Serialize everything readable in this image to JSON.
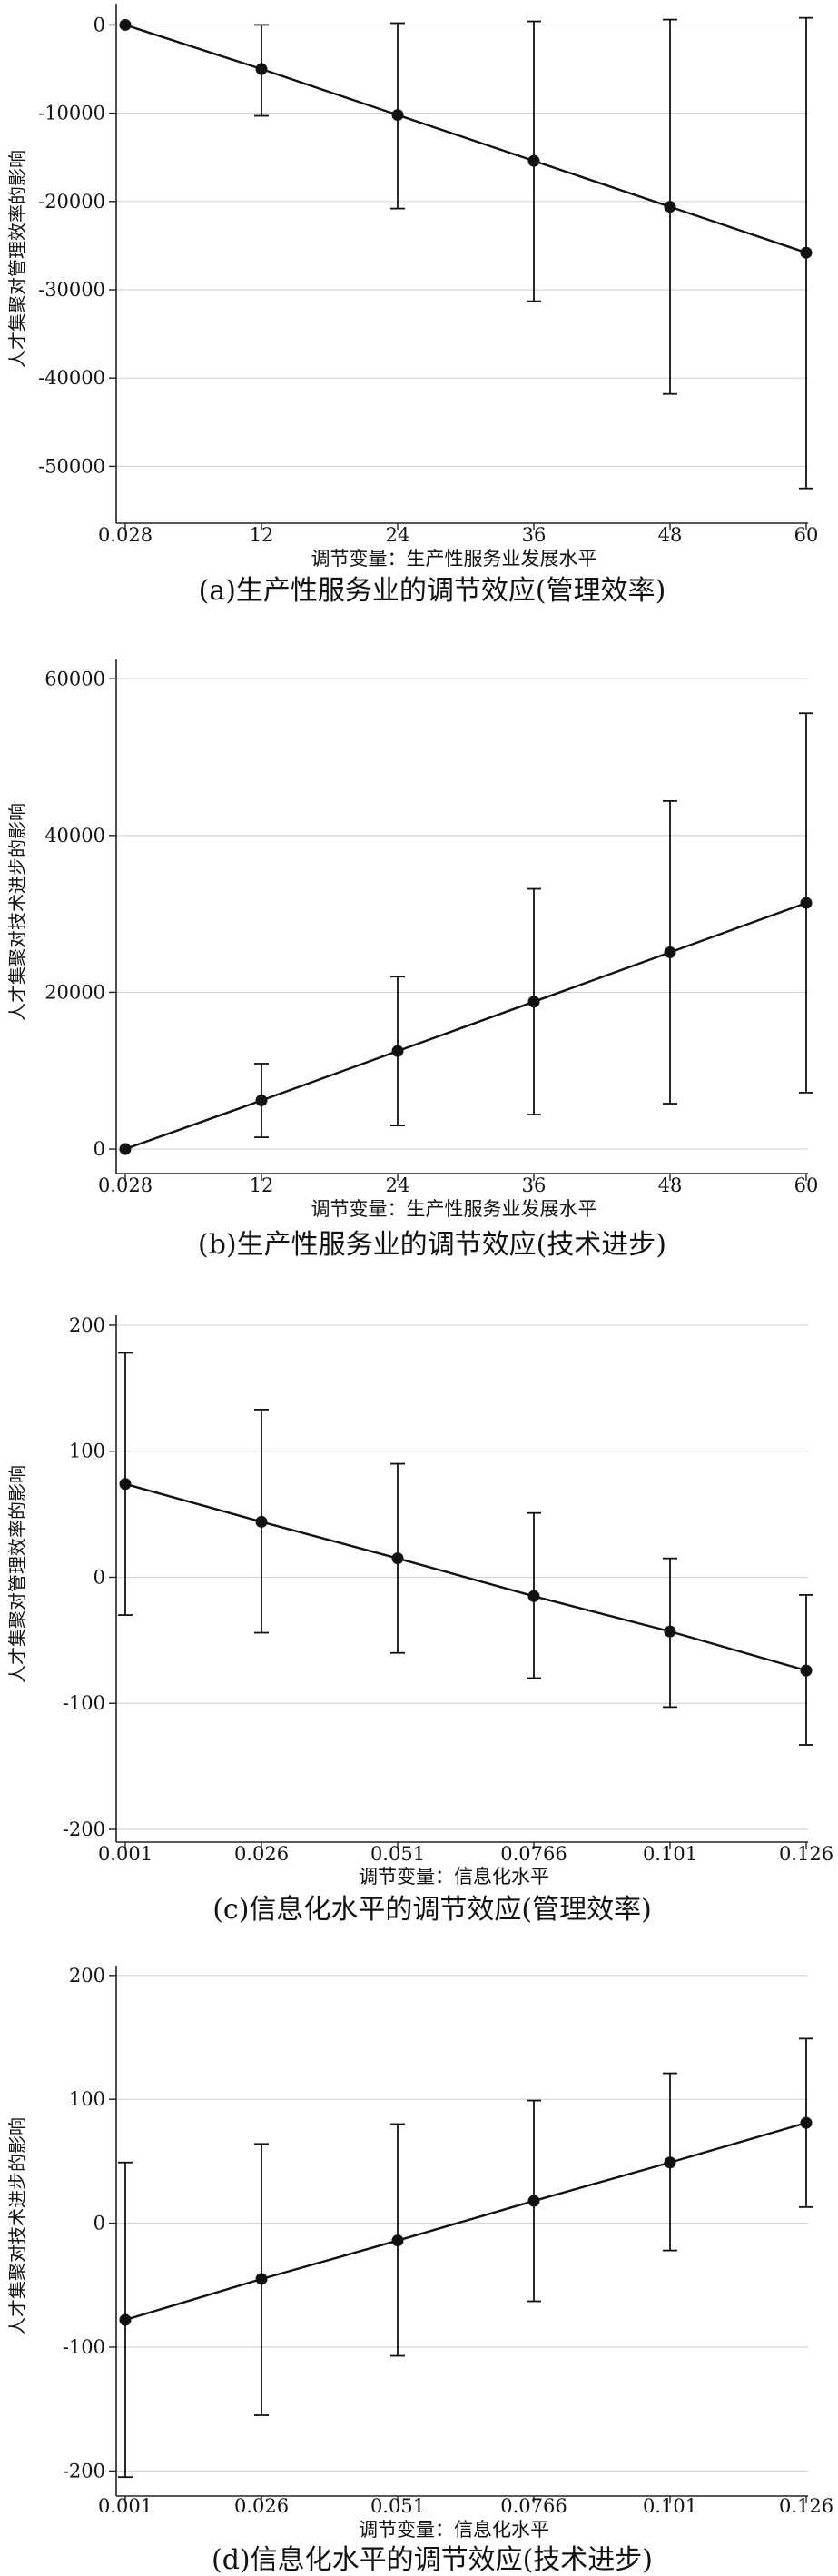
{
  "chart_data": [
    {
      "type": "line",
      "title": "",
      "caption": "(a)生产性服务业的调节效应(管理效率)",
      "xlabel": "调节变量：生产性服务业发展水平",
      "ylabel": "人才集聚对管理效率的影响",
      "x": [
        "0.028",
        "12",
        "24",
        "36",
        "48",
        "60"
      ],
      "x_tick_labels": [
        "0.028",
        "12",
        "24",
        "36",
        "48",
        "60"
      ],
      "y": [
        0,
        -5000,
        -10200,
        -15400,
        -20600,
        -25800
      ],
      "ci_lower": [
        0,
        -10300,
        -20800,
        -31300,
        -41800,
        -52500
      ],
      "ci_upper": [
        0,
        0,
        200,
        400,
        600,
        800
      ],
      "ylim": [
        -55000,
        2000
      ],
      "y_ticks": [
        0,
        -10000,
        -20000,
        -30000,
        -40000,
        -50000
      ],
      "grid": true,
      "error_bars": true
    },
    {
      "type": "line",
      "title": "",
      "caption": "(b)生产性服务业的调节效应(技术进步)",
      "xlabel": "调节变量：生产性服务业发展水平",
      "ylabel": "人才集聚对技术进步的影响",
      "x": [
        "0.028",
        "12",
        "24",
        "36",
        "48",
        "60"
      ],
      "x_tick_labels": [
        "0.028",
        "12",
        "24",
        "36",
        "48",
        "60"
      ],
      "y": [
        0,
        6200,
        12500,
        18800,
        25100,
        31400
      ],
      "ci_lower": [
        0,
        1500,
        3000,
        4400,
        5800,
        7200
      ],
      "ci_upper": [
        0,
        10900,
        22000,
        33200,
        44400,
        55600
      ],
      "ylim": [
        -1500,
        62000
      ],
      "y_ticks": [
        0,
        20000,
        40000,
        60000
      ],
      "grid": true,
      "error_bars": true
    },
    {
      "type": "line",
      "title": "",
      "caption": "(c)信息化水平的调节效应(管理效率)",
      "xlabel": "调节变量：信息化水平",
      "ylabel": "人才集聚对管理效率的影响",
      "x": [
        "0.001",
        "0.026",
        "0.051",
        "0.0766",
        "0.101",
        "0.126"
      ],
      "x_tick_labels": [
        "0.001",
        "0.026",
        "0.051",
        "0.0766",
        "0.101",
        "0.126"
      ],
      "y": [
        74,
        44,
        15,
        -15,
        -43,
        -74
      ],
      "ci_lower": [
        -30,
        -44,
        -60,
        -80,
        -103,
        -133
      ],
      "ci_upper": [
        178,
        133,
        90,
        51,
        15,
        -14
      ],
      "ylim": [
        -200,
        205
      ],
      "y_ticks": [
        200,
        100,
        0,
        -100,
        -200
      ],
      "grid": true,
      "error_bars": true
    },
    {
      "type": "line",
      "title": "",
      "caption": "(d)信息化水平的调节效应(技术进步)",
      "xlabel": "调节变量：信息化水平",
      "ylabel": "人才集聚对技术进步的影响",
      "x": [
        "0.001",
        "0.026",
        "0.051",
        "0.0766",
        "0.101",
        "0.126"
      ],
      "x_tick_labels": [
        "0.001",
        "0.026",
        "0.051",
        "0.0766",
        "0.101",
        "0.126"
      ],
      "y": [
        -78,
        -45,
        -14,
        18,
        49,
        81
      ],
      "ci_lower": [
        -205,
        -155,
        -107,
        -63,
        -22,
        13
      ],
      "ci_upper": [
        49,
        64,
        80,
        99,
        121,
        149
      ],
      "ylim": [
        -210,
        205
      ],
      "y_ticks": [
        200,
        100,
        0,
        -100,
        -200
      ],
      "grid": true,
      "error_bars": true
    }
  ]
}
